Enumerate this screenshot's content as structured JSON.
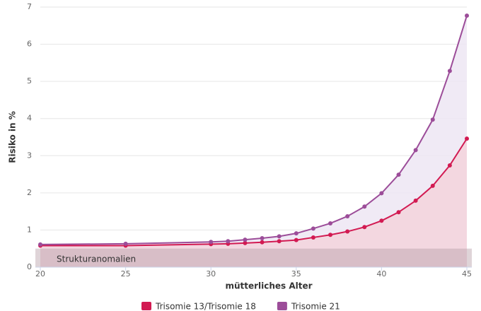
{
  "chart_data": {
    "type": "area-line",
    "xlabel": "mütterliches Alter",
    "ylabel": "Risiko in %",
    "x": [
      20,
      25,
      30,
      31,
      32,
      33,
      34,
      35,
      36,
      37,
      38,
      39,
      40,
      41,
      42,
      43,
      44,
      45
    ],
    "series": [
      {
        "name": "Trisomie 13/Trisomie 18",
        "color": "#d21a52",
        "fill": "#f3d3dc",
        "values": [
          0.58,
          0.58,
          0.62,
          0.63,
          0.65,
          0.67,
          0.7,
          0.73,
          0.8,
          0.87,
          0.96,
          1.08,
          1.25,
          1.48,
          1.79,
          2.19,
          2.74,
          3.46
        ]
      },
      {
        "name": "Trisomie 21",
        "color": "#9c4d99",
        "fill": "#ede6f3",
        "values": [
          0.61,
          0.63,
          0.68,
          0.7,
          0.74,
          0.78,
          0.83,
          0.91,
          1.04,
          1.18,
          1.37,
          1.63,
          1.99,
          2.49,
          3.15,
          3.97,
          5.28,
          6.77
        ]
      }
    ],
    "plot_band": {
      "from": 0,
      "to": 0.5,
      "label": "Strukturanomalien",
      "color": "#b8a0a8"
    },
    "xlim": [
      20,
      45
    ],
    "xticks": [
      20,
      25,
      30,
      35,
      40,
      45
    ],
    "ylim": [
      0,
      7
    ],
    "yticks": [
      0,
      1,
      2,
      3,
      4,
      5,
      6,
      7
    ],
    "grid": true
  }
}
